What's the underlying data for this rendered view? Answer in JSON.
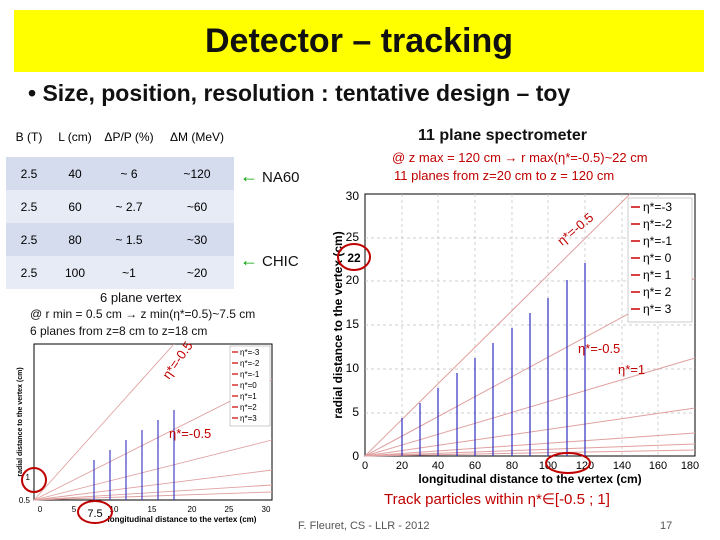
{
  "title": "Detector – tracking",
  "bullet": "• Size, position, resolution : tentative design – toy",
  "table": {
    "headers": [
      "B (T)",
      "L (cm)",
      "ΔP/P (%)",
      "ΔM (MeV)"
    ],
    "rows": [
      [
        "2.5",
        "40",
        "~ 6",
        "~120"
      ],
      [
        "2.5",
        "60",
        "~ 2.7",
        "~60"
      ],
      [
        "2.5",
        "80",
        "~ 1.5",
        "~30"
      ],
      [
        "2.5",
        "100",
        "~1",
        "~20"
      ]
    ]
  },
  "tags": {
    "na60": "NA60",
    "chic": "CHIC"
  },
  "spectrometer": {
    "title": "11 plane spectrometer",
    "line1": "@ z max = 120 cm → r max(η*=-0.5)~22 cm",
    "line2": "11 planes from z=20 cm to z = 120 cm",
    "xlabel": "longitudinal distance to the vertex (cm)",
    "ylabel": "radial distance to the vertex (cm)",
    "x_ticks": [
      "0",
      "20",
      "40",
      "60",
      "80",
      "100",
      "120",
      "140",
      "160",
      "180"
    ],
    "y_ticks": [
      "0",
      "5",
      "10",
      "15",
      "20",
      "25",
      "30"
    ],
    "legend": [
      "η*=-3",
      "η*=-2",
      "η*=-1",
      "η*= 0",
      "η*= 1",
      "η*= 2",
      "η*= 3"
    ],
    "annot_eta1": "η*=-0.5",
    "annot_eta2": "η*=-0.5",
    "annot_eta3": "η*=1",
    "circle_value": "22"
  },
  "vertex": {
    "title": "6 plane vertex",
    "line1": "@ r min = 0.5 cm → z min(η*=0.5)~7.5 cm",
    "line2": "6 planes from z=8 cm to z=18 cm",
    "xlabel": "longitudinal distance to the vertex (cm)",
    "ylabel": "radial distance to the vertex (cm)",
    "x_ticks": [
      "0",
      "5",
      "10",
      "15",
      "20",
      "25",
      "30"
    ],
    "y_ticks": [
      "0.5",
      "1"
    ],
    "legend": [
      "η*=-3",
      "η*=-2",
      "η*=-1",
      "η*=0",
      "η*=1",
      "η*=2",
      "η*=3"
    ],
    "annot_eta1": "η*=-0.5",
    "annot_eta2": "η*=-0.5",
    "circle_value": "7.5"
  },
  "footer": {
    "track": "Track particles within η*∈[-0.5 ; 1]",
    "credit": "F. Fleuret, CS - LLR - 2012",
    "page": "17"
  },
  "colors": {
    "title_bg": "#ffff00",
    "accent_red": "#c00000",
    "arrow_green": "#00a000",
    "plane_blue": "#3030c0",
    "line_pink": "#e0a0a0"
  }
}
